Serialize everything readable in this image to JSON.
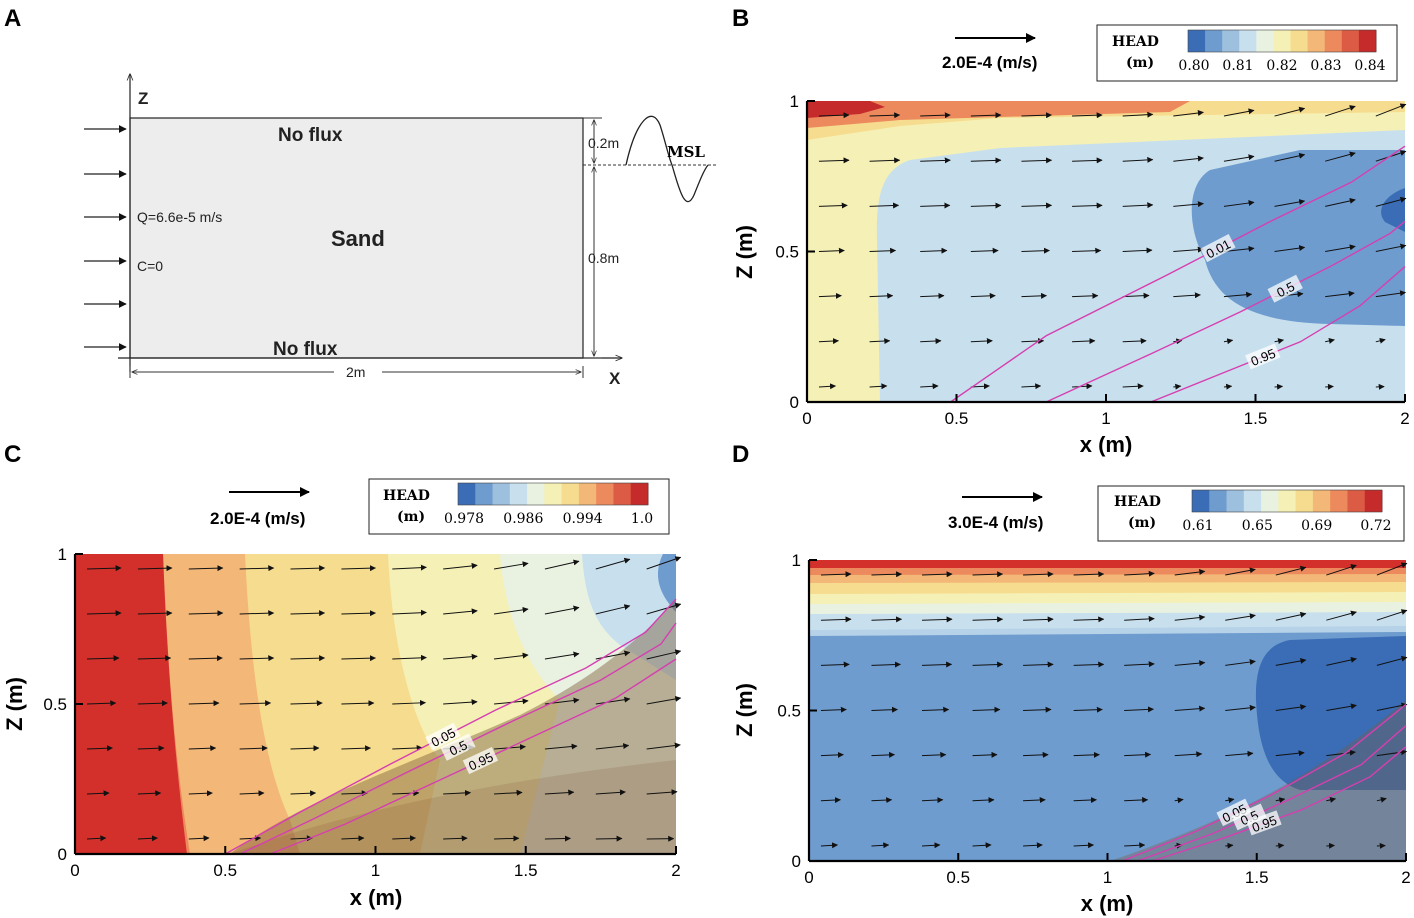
{
  "colors": {
    "contour_line": "#d63fb0",
    "head_scale": [
      "#3a6db5",
      "#6f9ccf",
      "#9dc0de",
      "#c8e0ee",
      "#e9f2e1",
      "#f5f0b5",
      "#f6dc8e",
      "#f3b777",
      "#ec8a5d",
      "#dc5b44",
      "#c52b2b"
    ],
    "saline_overlay": "#7a5a3a"
  },
  "panelA": {
    "label": "A",
    "z_axis": "Z",
    "x_axis": "X",
    "top_boundary": "No flux",
    "bottom_boundary": "No flux",
    "material": "Sand",
    "inflow_q": "Q=6.6e-5 m/s",
    "inflow_c": "C=0",
    "dim_top": "0.2m",
    "dim_bottom": "0.8m",
    "dim_width": "2m",
    "msl": "MSL"
  },
  "chart_data": [
    {
      "panel": "B",
      "type": "contour",
      "title": "",
      "xlabel": "x (m)",
      "ylabel": "Z (m)",
      "xlim": [
        0,
        2
      ],
      "ylim": [
        0,
        1
      ],
      "xticks": [
        "0",
        "0.5",
        "1",
        "1.5",
        "2"
      ],
      "yticks": [
        "0",
        "0.5",
        "1"
      ],
      "legend_title": "HEAD",
      "legend_unit": "(m)",
      "legend_ticks": [
        "0.80",
        "0.81",
        "0.82",
        "0.83",
        "0.84"
      ],
      "head_range": [
        0.795,
        0.845
      ],
      "reference_vector": "2.0E-4 (m/s)",
      "salinity_contours": [
        {
          "level": "0.01",
          "label": "0.01",
          "points": [
            [
              0.48,
              0
            ],
            [
              0.8,
              0.22
            ],
            [
              1.2,
              0.42
            ],
            [
              1.55,
              0.6
            ],
            [
              1.82,
              0.73
            ],
            [
              2.0,
              0.85
            ]
          ]
        },
        {
          "level": "0.5",
          "label": "0.5",
          "points": [
            [
              0.8,
              0
            ],
            [
              1.15,
              0.16
            ],
            [
              1.45,
              0.3
            ],
            [
              1.75,
              0.45
            ],
            [
              1.95,
              0.56
            ],
            [
              2.0,
              0.6
            ]
          ]
        },
        {
          "level": "0.95",
          "label": "0.95",
          "points": [
            [
              1.15,
              0
            ],
            [
              1.4,
              0.1
            ],
            [
              1.65,
              0.2
            ],
            [
              1.85,
              0.32
            ],
            [
              2.0,
              0.45
            ]
          ]
        }
      ]
    },
    {
      "panel": "C",
      "type": "contour",
      "title": "",
      "xlabel": "x (m)",
      "ylabel": "Z (m)",
      "xlim": [
        0,
        2
      ],
      "ylim": [
        0,
        1
      ],
      "xticks": [
        "0",
        "0.5",
        "1",
        "1.5",
        "2"
      ],
      "yticks": [
        "0",
        "0.5",
        "1"
      ],
      "legend_title": "HEAD",
      "legend_unit": "(m)",
      "legend_ticks": [
        "0.978",
        "0.986",
        "0.994",
        "1.0"
      ],
      "head_range": [
        0.976,
        1.0
      ],
      "reference_vector": "2.0E-4 (m/s)",
      "salinity_contours": [
        {
          "level": "0.05",
          "label": "0.05",
          "points": [
            [
              0.5,
              0
            ],
            [
              0.75,
              0.14
            ],
            [
              1.05,
              0.3
            ],
            [
              1.4,
              0.48
            ],
            [
              1.7,
              0.62
            ],
            [
              1.9,
              0.74
            ],
            [
              2.0,
              0.85
            ]
          ]
        },
        {
          "level": "0.5",
          "label": "0.5",
          "points": [
            [
              0.55,
              0
            ],
            [
              0.8,
              0.12
            ],
            [
              1.1,
              0.27
            ],
            [
              1.45,
              0.44
            ],
            [
              1.75,
              0.58
            ],
            [
              1.95,
              0.7
            ],
            [
              2.0,
              0.77
            ]
          ]
        },
        {
          "level": "0.95",
          "label": "0.95",
          "points": [
            [
              0.65,
              0
            ],
            [
              0.9,
              0.1
            ],
            [
              1.2,
              0.24
            ],
            [
              1.5,
              0.38
            ],
            [
              1.8,
              0.52
            ],
            [
              2.0,
              0.65
            ]
          ]
        }
      ]
    },
    {
      "panel": "D",
      "type": "contour",
      "title": "",
      "xlabel": "x (m)",
      "ylabel": "Z (m)",
      "xlim": [
        0,
        2
      ],
      "ylim": [
        0,
        1
      ],
      "xticks": [
        "0",
        "0.5",
        "1",
        "1.5",
        "2"
      ],
      "yticks": [
        "0",
        "0.5",
        "1"
      ],
      "legend_title": "HEAD",
      "legend_unit": "(m)",
      "legend_ticks": [
        "0.61",
        "0.65",
        "0.69",
        "0.72"
      ],
      "head_range": [
        0.6,
        0.725
      ],
      "reference_vector": "3.0E-4 (m/s)",
      "salinity_contours": [
        {
          "level": "0.05",
          "label": "0.05",
          "points": [
            [
              1.05,
              0
            ],
            [
              1.3,
              0.1
            ],
            [
              1.55,
              0.22
            ],
            [
              1.8,
              0.36
            ],
            [
              2.0,
              0.52
            ]
          ]
        },
        {
          "level": "0.5",
          "label": "0.5",
          "points": [
            [
              1.1,
              0
            ],
            [
              1.35,
              0.09
            ],
            [
              1.6,
              0.2
            ],
            [
              1.85,
              0.32
            ],
            [
              2.0,
              0.45
            ]
          ]
        },
        {
          "level": "0.95",
          "label": "0.95",
          "points": [
            [
              1.15,
              0
            ],
            [
              1.4,
              0.08
            ],
            [
              1.65,
              0.17
            ],
            [
              1.88,
              0.28
            ],
            [
              2.0,
              0.38
            ]
          ]
        }
      ]
    }
  ]
}
